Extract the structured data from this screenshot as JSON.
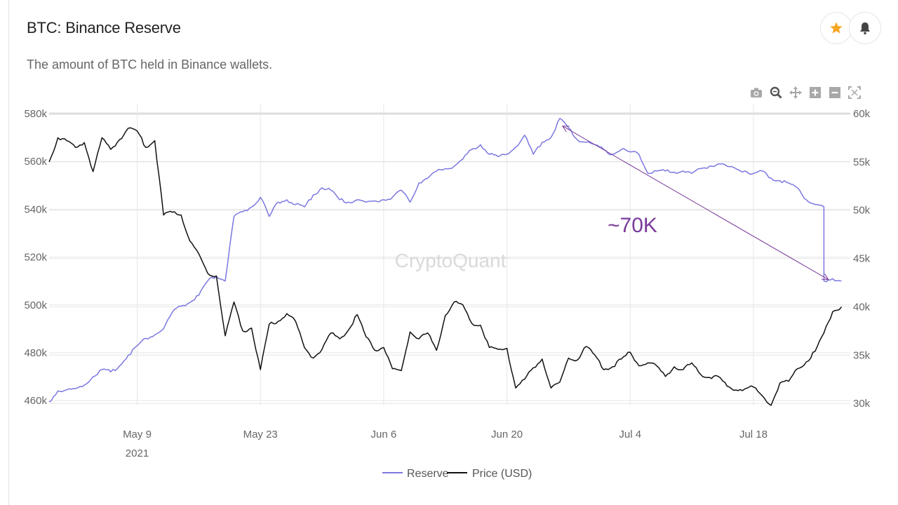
{
  "header": {
    "title": "BTC: Binance Reserve",
    "subtitle": "The amount of BTC held in Binance wallets.",
    "star_icon": "star-icon",
    "bell_icon": "bell-icon"
  },
  "toolbar": {
    "icons": [
      "camera-icon",
      "zoom-icon",
      "pan-icon",
      "zoom-in-icon",
      "zoom-out-icon",
      "autoscale-icon"
    ]
  },
  "colors": {
    "reserve": "#7b78e0",
    "price": "#111111",
    "annotation": "#7a3a9a",
    "grid": "#e6e6e6",
    "star": "#f5a623"
  },
  "watermark": "CryptoQuant",
  "annotation": {
    "text": "~70K"
  },
  "chart_data": {
    "type": "line",
    "x_ticks": [
      {
        "label": "May 9",
        "sublabel": "2021",
        "date": "2021-05-09"
      },
      {
        "label": "May 23",
        "sublabel": "",
        "date": "2021-05-23"
      },
      {
        "label": "Jun 6",
        "sublabel": "",
        "date": "2021-06-06"
      },
      {
        "label": "Jun 20",
        "sublabel": "",
        "date": "2021-06-20"
      },
      {
        "label": "Jul 4",
        "sublabel": "",
        "date": "2021-07-04"
      },
      {
        "label": "Jul 18",
        "sublabel": "",
        "date": "2021-07-18"
      }
    ],
    "x_range": [
      "2021-04-29",
      "2021-07-29"
    ],
    "y_left": {
      "ticks": [
        "460k",
        "480k",
        "500k",
        "520k",
        "540k",
        "560k",
        "580k"
      ],
      "range": [
        458000,
        580000
      ]
    },
    "y_right": {
      "ticks": [
        "30k",
        "35k",
        "40k",
        "45k",
        "50k",
        "55k",
        "60k"
      ],
      "range": [
        29800,
        60000
      ]
    },
    "legend_position": "bottom-center",
    "series": [
      {
        "name": "Reserve",
        "axis": "left",
        "points": [
          [
            "2021-04-29",
            459500
          ],
          [
            "2021-04-30",
            464000
          ],
          [
            "2021-05-01",
            464500
          ],
          [
            "2021-05-02",
            465000
          ],
          [
            "2021-05-03",
            466500
          ],
          [
            "2021-05-04",
            470000
          ],
          [
            "2021-05-05",
            473000
          ],
          [
            "2021-05-06",
            472000
          ],
          [
            "2021-05-07",
            474500
          ],
          [
            "2021-05-08",
            479000
          ],
          [
            "2021-05-09",
            483000
          ],
          [
            "2021-05-10",
            486000
          ],
          [
            "2021-05-11",
            487500
          ],
          [
            "2021-05-12",
            490000
          ],
          [
            "2021-05-13",
            497000
          ],
          [
            "2021-05-14",
            499500
          ],
          [
            "2021-05-15",
            501000
          ],
          [
            "2021-05-16",
            504000
          ],
          [
            "2021-05-17",
            510000
          ],
          [
            "2021-05-18",
            512000
          ],
          [
            "2021-05-19",
            510000
          ],
          [
            "2021-05-20",
            537000
          ],
          [
            "2021-05-21",
            539000
          ],
          [
            "2021-05-22",
            541000
          ],
          [
            "2021-05-23",
            545000
          ],
          [
            "2021-05-24",
            537000
          ],
          [
            "2021-05-25",
            543000
          ],
          [
            "2021-05-26",
            544000
          ],
          [
            "2021-05-27",
            542000
          ],
          [
            "2021-05-28",
            541000
          ],
          [
            "2021-05-29",
            546000
          ],
          [
            "2021-05-30",
            549000
          ],
          [
            "2021-05-31",
            548000
          ],
          [
            "2021-06-01",
            544000
          ],
          [
            "2021-06-02",
            543000
          ],
          [
            "2021-06-03",
            544000
          ],
          [
            "2021-06-04",
            543000
          ],
          [
            "2021-06-05",
            543500
          ],
          [
            "2021-06-06",
            544000
          ],
          [
            "2021-06-07",
            545000
          ],
          [
            "2021-06-08",
            548000
          ],
          [
            "2021-06-09",
            543000
          ],
          [
            "2021-06-10",
            551000
          ],
          [
            "2021-06-11",
            553000
          ],
          [
            "2021-06-12",
            556000
          ],
          [
            "2021-06-13",
            557000
          ],
          [
            "2021-06-14",
            558000
          ],
          [
            "2021-06-15",
            561000
          ],
          [
            "2021-06-16",
            565000
          ],
          [
            "2021-06-17",
            567000
          ],
          [
            "2021-06-18",
            563000
          ],
          [
            "2021-06-19",
            562000
          ],
          [
            "2021-06-20",
            563000
          ],
          [
            "2021-06-21",
            566000
          ],
          [
            "2021-06-22",
            571000
          ],
          [
            "2021-06-23",
            563000
          ],
          [
            "2021-06-24",
            568000
          ],
          [
            "2021-06-25",
            570000
          ],
          [
            "2021-06-26",
            578000
          ],
          [
            "2021-06-27",
            574000
          ],
          [
            "2021-06-28",
            569000
          ],
          [
            "2021-06-29",
            568000
          ],
          [
            "2021-06-30",
            567000
          ],
          [
            "2021-07-01",
            565000
          ],
          [
            "2021-07-02",
            563000
          ],
          [
            "2021-07-03",
            565000
          ],
          [
            "2021-07-04",
            564000
          ],
          [
            "2021-07-05",
            563000
          ],
          [
            "2021-07-06",
            555000
          ],
          [
            "2021-07-07",
            556000
          ],
          [
            "2021-07-08",
            556000
          ],
          [
            "2021-07-09",
            555500
          ],
          [
            "2021-07-10",
            556000
          ],
          [
            "2021-07-11",
            555000
          ],
          [
            "2021-07-12",
            557000
          ],
          [
            "2021-07-13",
            558000
          ],
          [
            "2021-07-14",
            559000
          ],
          [
            "2021-07-15",
            558000
          ],
          [
            "2021-07-16",
            557000
          ],
          [
            "2021-07-17",
            556000
          ],
          [
            "2021-07-18",
            555000
          ],
          [
            "2021-07-19",
            556000
          ],
          [
            "2021-07-20",
            553000
          ],
          [
            "2021-07-21",
            552000
          ],
          [
            "2021-07-22",
            551000
          ],
          [
            "2021-07-23",
            549000
          ],
          [
            "2021-07-24",
            544000
          ],
          [
            "2021-07-25",
            542000
          ],
          [
            "2021-07-26",
            541000
          ],
          [
            "2021-07-26",
            510000
          ],
          [
            "2021-07-27",
            511000
          ],
          [
            "2021-07-28",
            510000
          ]
        ]
      },
      {
        "name": "Price (USD)",
        "axis": "right",
        "points": [
          [
            "2021-04-29",
            55000
          ],
          [
            "2021-04-30",
            57500
          ],
          [
            "2021-05-01",
            57200
          ],
          [
            "2021-05-02",
            56500
          ],
          [
            "2021-05-03",
            57000
          ],
          [
            "2021-05-04",
            54000
          ],
          [
            "2021-05-05",
            57500
          ],
          [
            "2021-05-06",
            56300
          ],
          [
            "2021-05-07",
            57300
          ],
          [
            "2021-05-08",
            58500
          ],
          [
            "2021-05-09",
            58200
          ],
          [
            "2021-05-10",
            56500
          ],
          [
            "2021-05-11",
            57200
          ],
          [
            "2021-05-12",
            49500
          ],
          [
            "2021-05-13",
            49800
          ],
          [
            "2021-05-14",
            49500
          ],
          [
            "2021-05-15",
            46800
          ],
          [
            "2021-05-16",
            45500
          ],
          [
            "2021-05-17",
            43500
          ],
          [
            "2021-05-18",
            43200
          ],
          [
            "2021-05-19",
            37000
          ],
          [
            "2021-05-20",
            40500
          ],
          [
            "2021-05-21",
            37500
          ],
          [
            "2021-05-22",
            37800
          ],
          [
            "2021-05-23",
            33500
          ],
          [
            "2021-05-24",
            38200
          ],
          [
            "2021-05-25",
            38500
          ],
          [
            "2021-05-26",
            39300
          ],
          [
            "2021-05-27",
            38500
          ],
          [
            "2021-05-28",
            35800
          ],
          [
            "2021-05-29",
            34700
          ],
          [
            "2021-05-30",
            35600
          ],
          [
            "2021-05-31",
            37300
          ],
          [
            "2021-06-01",
            36700
          ],
          [
            "2021-06-02",
            37600
          ],
          [
            "2021-06-03",
            39200
          ],
          [
            "2021-06-04",
            36900
          ],
          [
            "2021-06-05",
            35500
          ],
          [
            "2021-06-06",
            35800
          ],
          [
            "2021-06-07",
            33600
          ],
          [
            "2021-06-08",
            33400
          ],
          [
            "2021-06-09",
            37400
          ],
          [
            "2021-06-10",
            36700
          ],
          [
            "2021-06-11",
            37300
          ],
          [
            "2021-06-12",
            35500
          ],
          [
            "2021-06-13",
            39100
          ],
          [
            "2021-06-14",
            40500
          ],
          [
            "2021-06-15",
            40200
          ],
          [
            "2021-06-16",
            38300
          ],
          [
            "2021-06-17",
            38100
          ],
          [
            "2021-06-18",
            35800
          ],
          [
            "2021-06-19",
            35600
          ],
          [
            "2021-06-20",
            35700
          ],
          [
            "2021-06-21",
            31600
          ],
          [
            "2021-06-22",
            32500
          ],
          [
            "2021-06-23",
            33700
          ],
          [
            "2021-06-24",
            34600
          ],
          [
            "2021-06-25",
            31600
          ],
          [
            "2021-06-26",
            32200
          ],
          [
            "2021-06-27",
            34700
          ],
          [
            "2021-06-28",
            34500
          ],
          [
            "2021-06-29",
            35900
          ],
          [
            "2021-06-30",
            35000
          ],
          [
            "2021-07-01",
            33500
          ],
          [
            "2021-07-02",
            33800
          ],
          [
            "2021-07-03",
            34600
          ],
          [
            "2021-07-04",
            35300
          ],
          [
            "2021-07-05",
            33900
          ],
          [
            "2021-07-06",
            34200
          ],
          [
            "2021-07-07",
            33900
          ],
          [
            "2021-07-08",
            32800
          ],
          [
            "2021-07-09",
            33800
          ],
          [
            "2021-07-10",
            33500
          ],
          [
            "2021-07-11",
            34200
          ],
          [
            "2021-07-12",
            33000
          ],
          [
            "2021-07-13",
            32700
          ],
          [
            "2021-07-14",
            32800
          ],
          [
            "2021-07-15",
            31800
          ],
          [
            "2021-07-16",
            31400
          ],
          [
            "2021-07-17",
            31500
          ],
          [
            "2021-07-18",
            31700
          ],
          [
            "2021-07-19",
            30800
          ],
          [
            "2021-07-20",
            29800
          ],
          [
            "2021-07-21",
            32100
          ],
          [
            "2021-07-22",
            32300
          ],
          [
            "2021-07-23",
            33600
          ],
          [
            "2021-07-24",
            34300
          ],
          [
            "2021-07-25",
            35400
          ],
          [
            "2021-07-26",
            37300
          ],
          [
            "2021-07-27",
            39500
          ],
          [
            "2021-07-28",
            40000
          ]
        ]
      }
    ],
    "annotations": [
      {
        "type": "arrow",
        "text": "~70K",
        "from": [
          "2021-06-26",
          576000
        ],
        "to": [
          "2021-07-27",
          510000
        ]
      }
    ]
  }
}
